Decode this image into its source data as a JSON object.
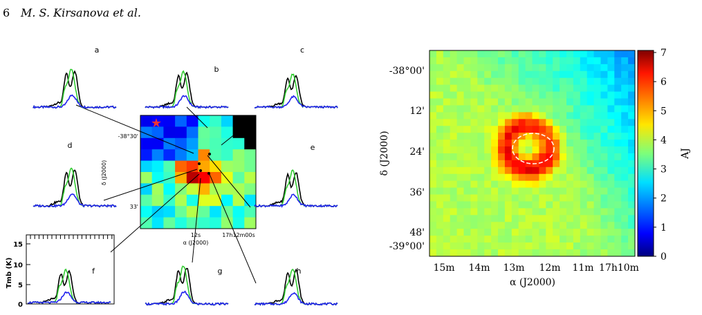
{
  "header": {
    "page": "6",
    "authors": "M. S. Kirsanova et al."
  },
  "left_figure": {
    "panels": [
      "a",
      "b",
      "c",
      "d",
      "e",
      "f",
      "g",
      "h"
    ],
    "map": {
      "y_ticks": [
        "-38°30'",
        "33'"
      ],
      "y_label": "δ (J2000)",
      "x_ticks": [
        "12s",
        "17h12m00s"
      ],
      "x_label": "α (J2000)"
    },
    "panel_f": {
      "y_label": "Tmb (K)",
      "y_ticks": [
        "15",
        "10",
        "5",
        "0"
      ]
    }
  },
  "right_figure": {
    "y_ticks": [
      "-38°00'",
      "12'",
      "24'",
      "36'",
      "48'",
      "-39°00'"
    ],
    "x_ticks": [
      "15m",
      "14m",
      "13m",
      "12m",
      "11m",
      "17h10m"
    ],
    "x_label": "α (J2000)",
    "y_label": "δ (J2000)",
    "colorbar_ticks": [
      "0",
      "1",
      "2",
      "3",
      "4",
      "5",
      "6",
      "7"
    ],
    "colorbar_label": "AJ"
  }
}
